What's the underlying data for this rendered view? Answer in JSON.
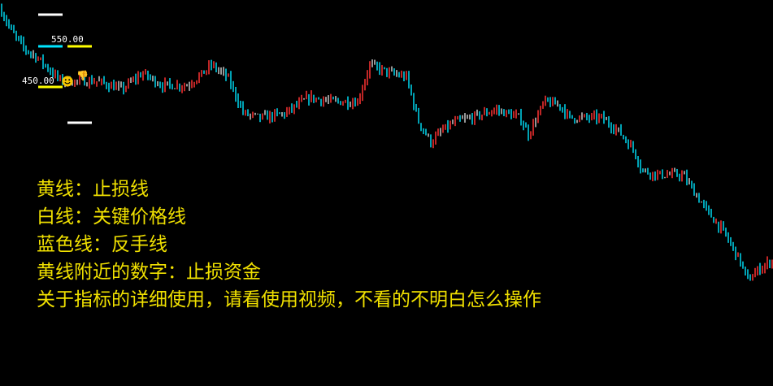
{
  "chart_data": {
    "type": "candlestick",
    "title": "",
    "xlabel": "",
    "ylabel": "",
    "grid": false,
    "price_path": [
      [
        0,
        340
      ],
      [
        15,
        310
      ],
      [
        30,
        290
      ],
      [
        45,
        280
      ],
      [
        60,
        265
      ],
      [
        75,
        250
      ],
      [
        90,
        250
      ],
      [
        120,
        250
      ],
      [
        150,
        240
      ],
      [
        175,
        260
      ],
      [
        200,
        245
      ],
      [
        230,
        245
      ],
      [
        250,
        260
      ],
      [
        260,
        270
      ],
      [
        280,
        255
      ],
      [
        300,
        210
      ],
      [
        320,
        205
      ],
      [
        350,
        210
      ],
      [
        380,
        230
      ],
      [
        410,
        225
      ],
      [
        440,
        225
      ],
      [
        455,
        270
      ],
      [
        480,
        260
      ],
      [
        500,
        255
      ],
      [
        515,
        200
      ],
      [
        530,
        175
      ],
      [
        545,
        190
      ],
      [
        560,
        200
      ],
      [
        580,
        205
      ],
      [
        610,
        215
      ],
      [
        640,
        205
      ],
      [
        650,
        185
      ],
      [
        670,
        225
      ],
      [
        690,
        220
      ],
      [
        700,
        205
      ],
      [
        740,
        205
      ],
      [
        760,
        190
      ],
      [
        780,
        165
      ],
      [
        790,
        140
      ],
      [
        810,
        135
      ],
      [
        840,
        135
      ],
      [
        850,
        120
      ],
      [
        870,
        90
      ],
      [
        890,
        65
      ],
      [
        910,
        30
      ],
      [
        920,
        5
      ],
      [
        935,
        20
      ],
      [
        951,
        30
      ]
    ],
    "colors": {
      "up": "#ff3333",
      "down": "#00d8f0",
      "neutral": "#c8c8c8"
    }
  },
  "markers": {
    "stop_loss_upper": "550.00",
    "stop_loss_lower": "450.00",
    "colors": {
      "key_line": "#ffffff",
      "reverse_line": "#00e5ff",
      "stop_line": "#ffff00"
    },
    "icons": [
      "smiley-icon",
      "thumb-down-icon"
    ]
  },
  "notes": [
    "黄线：止损线",
    "白线：关键价格线",
    "蓝色线：反手线",
    "黄线附近的数字：止损资金",
    "关于指标的详细使用，请看使用视频，不看的不明白怎么操作"
  ],
  "note_color": "#f0e000"
}
